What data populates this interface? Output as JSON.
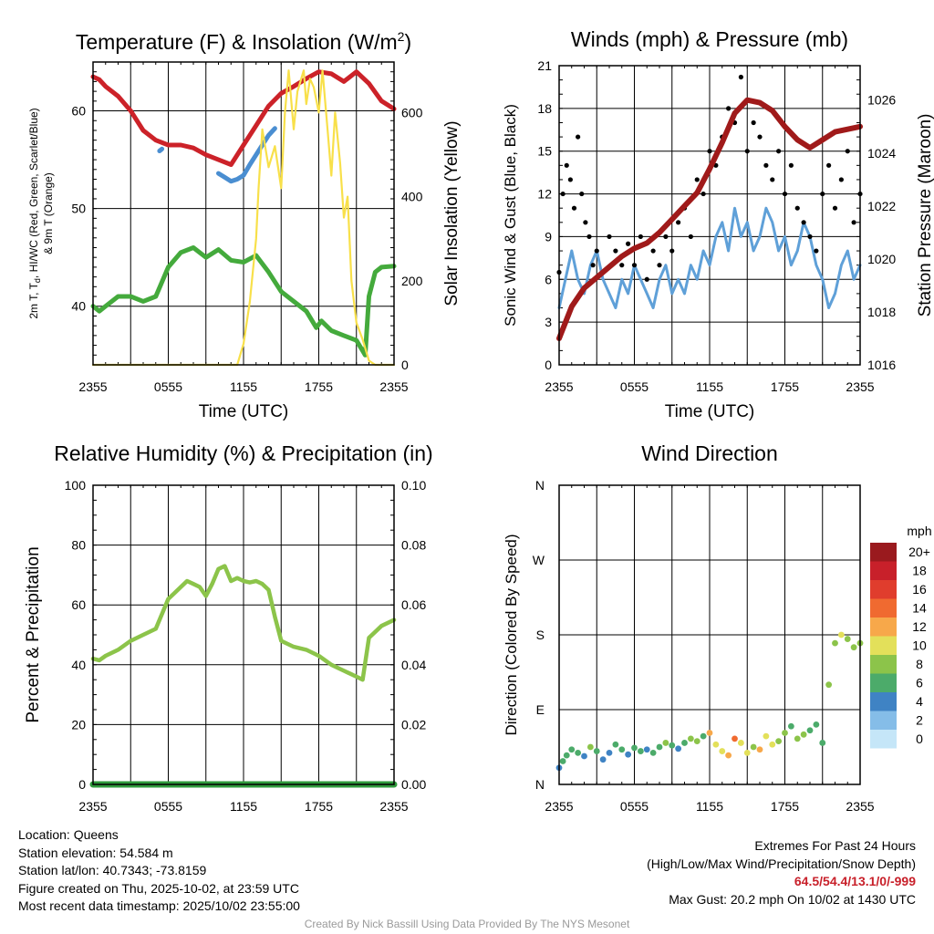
{
  "time_ticks": [
    "2355",
    "0555",
    "1155",
    "1755",
    "2355"
  ],
  "info": {
    "location": "Location: Queens",
    "elevation": "Station elevation: 54.584 m",
    "latlon": "Station lat/lon: 40.7343; -73.8159",
    "created": "Figure created on Thu, 2025-10-02, at 23:59 UTC",
    "recent": "Most recent data timestamp: 2025/10/02 23:55:00"
  },
  "extremes": {
    "title": "Extremes For Past 24 Hours",
    "subtitle": "(High/Low/Max Wind/Precipitation/Snow Depth)",
    "values": "64.5/54.4/13.1/0/-999",
    "gust": "Max Gust: 20.2 mph On 10/02 at 1430 UTC"
  },
  "credit": "Created By Nick Bassill Using Data Provided By The NYS Mesonet",
  "colors": {
    "temp": "#cc2229",
    "dewpoint": "#44aa3c",
    "windchill": "#4a8ed1",
    "insolation": "#f8e04a",
    "wind": "#5fa0d8",
    "gust": "#000000",
    "pressure": "#a01a1a",
    "rh": "#8cc44a",
    "precip": "#2f9a3c"
  },
  "chart_data": [
    {
      "type": "line",
      "title_main": "Temperature (F) & Insolation (W/m",
      "title_sup": "2",
      "title_end": ")",
      "xlabel": "Time (UTC)",
      "ylabel_line1": "2m T, T",
      "ylabel_sub": "d",
      "ylabel_rest": ", HI/WC (Red, Green, Scarlet/Blue)",
      "ylabel_line2": "& 9m T (Orange)",
      "ylabel_right": "Solar Insolation (Yellow)",
      "x_range_hours": [
        0,
        24
      ],
      "ylim": [
        34,
        65
      ],
      "y_ticks": [
        40,
        50,
        60
      ],
      "y2lim": [
        0,
        720
      ],
      "y2_ticks": [
        0,
        200,
        400,
        600
      ],
      "series": [
        {
          "name": "Temperature",
          "color_key": "temp",
          "x": [
            0,
            0.5,
            1,
            2,
            3,
            4,
            5,
            6,
            7,
            8,
            9,
            10,
            11,
            12,
            13,
            14,
            15,
            16,
            17,
            18,
            19,
            20,
            21,
            22,
            23,
            24
          ],
          "y": [
            63.5,
            63.2,
            62.5,
            61.5,
            60,
            58,
            57,
            56.5,
            56.5,
            56.2,
            55.5,
            55,
            54.5,
            56.5,
            58.5,
            60.5,
            61.8,
            62.5,
            63.3,
            64,
            63.8,
            63,
            64,
            62.8,
            61,
            60.2
          ]
        },
        {
          "name": "Dew point",
          "color_key": "dewpoint",
          "x": [
            0,
            0.5,
            1,
            2,
            3,
            4,
            5,
            6,
            7,
            8,
            9,
            10,
            11,
            12,
            13,
            14,
            15,
            16,
            17,
            17.8,
            18.2,
            19,
            20,
            21,
            21.7,
            22,
            22.5,
            23,
            24
          ],
          "y": [
            40,
            39.5,
            40,
            41,
            41,
            40.5,
            41,
            44,
            45.5,
            46,
            45,
            45.8,
            44.7,
            44.5,
            45.2,
            43.5,
            41.5,
            40.5,
            39.5,
            37.8,
            38.5,
            37.5,
            37,
            36.5,
            35,
            41,
            43.5,
            44,
            44.1
          ]
        },
        {
          "name": "Wind chill",
          "color_key": "windchill",
          "x": [
            10,
            10.5,
            11,
            11.5,
            12,
            12.5,
            13,
            13.5,
            14,
            14.5
          ],
          "y": [
            53.6,
            53.2,
            52.8,
            53,
            53.4,
            54.5,
            55.5,
            56.5,
            57.5,
            58.2
          ]
        },
        {
          "name": "Wind chill (early)",
          "color_key": "windchill",
          "x": [
            5.3,
            5.5
          ],
          "y": [
            55.9,
            56.1
          ]
        },
        {
          "name": "Solar insolation",
          "color_key": "insolation",
          "axis": "right",
          "x": [
            0,
            11.5,
            12,
            12.5,
            13,
            13.2,
            13.5,
            14,
            14.5,
            15,
            15.3,
            15.6,
            16,
            16.3,
            16.8,
            17,
            17.3,
            17.6,
            18,
            18.3,
            18.7,
            19,
            19.3,
            19.7,
            20,
            20.3,
            20.6,
            21,
            21.5,
            22,
            22.5,
            24
          ],
          "y": [
            0,
            0,
            50,
            150,
            300,
            420,
            560,
            470,
            520,
            420,
            600,
            700,
            560,
            650,
            700,
            620,
            680,
            660,
            600,
            700,
            560,
            450,
            600,
            480,
            350,
            400,
            200,
            100,
            60,
            10,
            0,
            0
          ]
        }
      ]
    },
    {
      "type": "line",
      "title": "Winds (mph) & Pressure (mb)",
      "xlabel": "Time (UTC)",
      "ylabel": "Sonic Wind & Gust (Blue, Black)",
      "ylabel_right": "Station Pressure (Maroon)",
      "x_range_hours": [
        0,
        24
      ],
      "ylim": [
        0,
        21
      ],
      "y_ticks": [
        0,
        3,
        6,
        9,
        12,
        15,
        18,
        21
      ],
      "y2lim": [
        1016,
        1027.3
      ],
      "y2_ticks": [
        1016,
        1018,
        1020,
        1022,
        1024,
        1026
      ],
      "series": [
        {
          "name": "Sonic wind",
          "color_key": "wind",
          "x": [
            0,
            0.5,
            1,
            1.5,
            2,
            2.5,
            3,
            3.5,
            4,
            4.5,
            5,
            5.5,
            6,
            6.5,
            7,
            7.5,
            8,
            8.5,
            9,
            9.5,
            10,
            10.5,
            11,
            11.5,
            12,
            12.5,
            13,
            13.5,
            14,
            14.5,
            15,
            15.5,
            16,
            16.5,
            17,
            17.5,
            18,
            18.5,
            19,
            19.5,
            20,
            20.5,
            21,
            21.5,
            22,
            22.5,
            23,
            23.5,
            24
          ],
          "y": [
            4,
            6,
            8,
            6,
            5,
            7,
            8,
            6,
            5,
            4,
            6,
            5,
            7,
            6,
            5,
            4,
            6,
            7,
            5,
            6,
            5,
            7,
            6,
            8,
            7,
            9,
            10,
            8,
            11,
            9,
            10,
            8,
            9,
            11,
            10,
            8,
            9,
            7,
            8,
            10,
            9,
            7,
            6,
            4,
            5,
            7,
            8,
            6,
            7
          ]
        },
        {
          "name": "Gust",
          "color_key": "gust",
          "marker": "dot",
          "x": [
            0,
            0.3,
            0.6,
            0.9,
            1.2,
            1.5,
            1.8,
            2.1,
            2.4,
            2.7,
            3,
            3.5,
            4,
            4.5,
            5,
            5.5,
            6,
            6.5,
            7,
            7.5,
            8,
            8.5,
            9,
            9.5,
            10,
            10.5,
            11,
            11.5,
            12,
            12.5,
            13,
            13.5,
            14,
            14.5,
            15,
            15.5,
            16,
            16.5,
            17,
            17.5,
            18,
            18.5,
            19,
            19.5,
            20,
            20.5,
            21,
            21.5,
            22,
            22.5,
            23,
            23.5,
            24
          ],
          "y": [
            6.5,
            12,
            14,
            13,
            11,
            16,
            12,
            10,
            9,
            7,
            8,
            6.5,
            9,
            8,
            7,
            8.5,
            7,
            9,
            6,
            8,
            7,
            9,
            8,
            10,
            11,
            9,
            13,
            12,
            15,
            14,
            16,
            18,
            17,
            20.2,
            15,
            17,
            16,
            14,
            13,
            15,
            12,
            14,
            11,
            10,
            9,
            8,
            12,
            14,
            11,
            13,
            15,
            10,
            12
          ]
        },
        {
          "name": "Station pressure",
          "color_key": "pressure",
          "axis": "right",
          "x": [
            0,
            1,
            2,
            3,
            4,
            5,
            6,
            7,
            8,
            9,
            10,
            11,
            12,
            13,
            14,
            15,
            16,
            17,
            18,
            19,
            20,
            21,
            22,
            23,
            24
          ],
          "y": [
            1017,
            1018.2,
            1018.9,
            1019.3,
            1019.7,
            1020.1,
            1020.4,
            1020.6,
            1021,
            1021.5,
            1022,
            1022.5,
            1023.4,
            1024.4,
            1025.5,
            1026,
            1025.9,
            1025.6,
            1025,
            1024.5,
            1024.2,
            1024.5,
            1024.8,
            1024.9,
            1025
          ]
        }
      ]
    },
    {
      "type": "line",
      "title": "Relative Humidity (%) & Precipitation (in)",
      "ylabel": "Percent & Precipitation",
      "x_range_hours": [
        0,
        24
      ],
      "ylim": [
        0,
        100
      ],
      "y_ticks": [
        0,
        20,
        40,
        60,
        80,
        100
      ],
      "y2lim": [
        0,
        0.1
      ],
      "y2_ticks": [
        "0.00",
        "0.02",
        "0.04",
        "0.06",
        "0.08",
        "0.10"
      ],
      "series": [
        {
          "name": "Relative humidity",
          "color_key": "rh",
          "x": [
            0,
            0.5,
            1,
            2,
            3,
            4,
            5,
            6,
            6.5,
            7,
            7.5,
            8,
            8.5,
            9,
            9.5,
            10,
            10.5,
            11,
            11.5,
            12,
            12.5,
            13,
            13.5,
            14,
            14.5,
            15,
            16,
            17,
            18,
            19,
            19.5,
            20,
            20.5,
            21,
            21.5,
            22,
            22.5,
            23,
            24
          ],
          "y": [
            42,
            41.5,
            43,
            45,
            48,
            50,
            52,
            62,
            64,
            66,
            68,
            67,
            66,
            63,
            67,
            72,
            73,
            68,
            69,
            68,
            67.5,
            68,
            67,
            65,
            56,
            48,
            46,
            45,
            43,
            40,
            39,
            38,
            37,
            36,
            35,
            49,
            51,
            53,
            55
          ]
        },
        {
          "name": "Precipitation",
          "color_key": "precip",
          "axis": "right",
          "x": [
            0,
            24
          ],
          "y": [
            0,
            0
          ]
        }
      ]
    },
    {
      "type": "scatter",
      "title": "Wind Direction",
      "ylabel": "Direction (Colored By Speed)",
      "x_range_hours": [
        0,
        24
      ],
      "y_ticks": [
        "N",
        "E",
        "S",
        "W",
        "N"
      ],
      "ylim_deg": [
        0,
        360
      ],
      "legend_title": "mph",
      "legend_labels": [
        "20+",
        "18",
        "16",
        "14",
        "12",
        "10",
        "8",
        "6",
        "4",
        "2",
        "0"
      ],
      "legend_colors": [
        "#9a1a1e",
        "#c8202a",
        "#e03d2d",
        "#f06a30",
        "#f7a84a",
        "#e3e05a",
        "#8cc44a",
        "#4cab6a",
        "#3f83c4",
        "#85bde8",
        "#c5e6f8"
      ],
      "x": [
        0,
        0.3,
        0.6,
        1,
        1.5,
        2,
        2.5,
        3,
        3.5,
        4,
        4.5,
        5,
        5.5,
        6,
        6.5,
        7,
        7.5,
        8,
        8.5,
        9,
        9.5,
        10,
        10.5,
        11,
        11.5,
        12,
        12.5,
        13,
        13.5,
        14,
        14.5,
        15,
        15.5,
        16,
        16.5,
        17,
        17.5,
        18,
        18.5,
        19,
        19.5,
        20,
        20.5,
        21,
        21.5,
        22,
        22.5,
        23,
        23.5,
        24
      ],
      "deg": [
        20,
        28,
        35,
        42,
        38,
        34,
        45,
        40,
        30,
        38,
        48,
        42,
        36,
        44,
        40,
        42,
        38,
        45,
        50,
        47,
        43,
        50,
        55,
        52,
        58,
        62,
        48,
        40,
        35,
        55,
        50,
        38,
        45,
        42,
        58,
        48,
        52,
        62,
        70,
        55,
        60,
        65,
        72,
        50,
        120,
        170,
        180,
        175,
        165,
        170
      ],
      "speeds": [
        4,
        5,
        6,
        6,
        5,
        4,
        7,
        6,
        3,
        4,
        6,
        5,
        4,
        6,
        5,
        4,
        5,
        6,
        7,
        5,
        4,
        6,
        8,
        7,
        6,
        12,
        10,
        9,
        11,
        13,
        10,
        9,
        8,
        11,
        10,
        9,
        8,
        7,
        6,
        8,
        7,
        6,
        5,
        6,
        8,
        7,
        9,
        8,
        7,
        8
      ]
    }
  ]
}
